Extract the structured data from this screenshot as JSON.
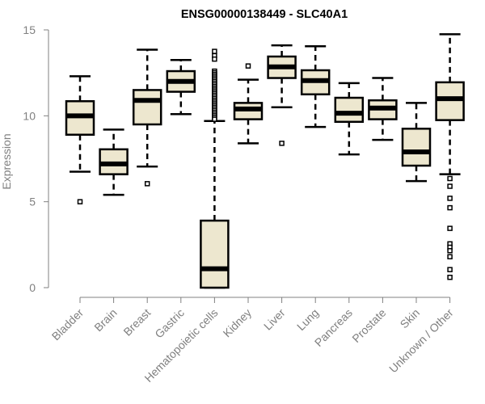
{
  "chart_data": {
    "type": "boxplot",
    "title": "ENSG00000138449 - SLC40A1",
    "xlabel": "",
    "ylabel": "Expression",
    "ylim": [
      0,
      15
    ],
    "yticks": [
      0,
      5,
      10,
      15
    ],
    "grid": false,
    "legend": "none",
    "colors": {
      "box_fill": "#ede7cf",
      "box_stroke": "#000000",
      "axis": "#808080",
      "tick_text": "#808080"
    },
    "categories": [
      "Bladder",
      "Brain",
      "Breast",
      "Gastric",
      "Hematopoietic cells",
      "Kidney",
      "Liver",
      "Lung",
      "Pancreas",
      "Prostate",
      "Skin",
      "Unknown / Other"
    ],
    "boxes": [
      {
        "name": "Bladder",
        "whisker_low": 6.75,
        "q1": 8.9,
        "median": 10.0,
        "q3": 10.85,
        "whisker_high": 12.3,
        "outliers": [
          5.0
        ]
      },
      {
        "name": "Brain",
        "whisker_low": 5.4,
        "q1": 6.6,
        "median": 7.2,
        "q3": 8.05,
        "whisker_high": 9.2,
        "outliers": []
      },
      {
        "name": "Breast",
        "whisker_low": 7.05,
        "q1": 9.5,
        "median": 10.9,
        "q3": 11.5,
        "whisker_high": 13.85,
        "outliers": [
          6.05
        ]
      },
      {
        "name": "Gastric",
        "whisker_low": 10.1,
        "q1": 11.4,
        "median": 12.0,
        "q3": 12.6,
        "whisker_high": 13.25,
        "outliers": []
      },
      {
        "name": "Hematopoietic cells",
        "whisker_low": 0.0,
        "q1": 0.0,
        "median": 1.1,
        "q3": 3.9,
        "whisker_high": 9.7,
        "outliers": [
          13.75,
          13.5,
          13.3,
          12.6,
          12.5,
          12.4,
          12.3,
          12.2,
          12.1,
          12.0,
          11.9,
          11.8,
          11.7,
          11.6,
          11.5,
          11.4,
          11.3,
          11.2,
          11.1,
          11.0,
          10.9,
          10.8,
          10.7,
          10.6,
          10.5,
          10.4,
          10.3,
          10.2,
          10.1,
          10.0,
          9.9,
          9.8
        ]
      },
      {
        "name": "Kidney",
        "whisker_low": 8.4,
        "q1": 9.8,
        "median": 10.4,
        "q3": 10.75,
        "whisker_high": 12.1,
        "outliers": [
          12.9
        ]
      },
      {
        "name": "Liver",
        "whisker_low": 10.5,
        "q1": 12.2,
        "median": 12.85,
        "q3": 13.45,
        "whisker_high": 14.1,
        "outliers": [
          8.4
        ]
      },
      {
        "name": "Lung",
        "whisker_low": 9.35,
        "q1": 11.25,
        "median": 12.05,
        "q3": 12.65,
        "whisker_high": 14.05,
        "outliers": []
      },
      {
        "name": "Pancreas",
        "whisker_low": 7.75,
        "q1": 9.65,
        "median": 10.15,
        "q3": 11.05,
        "whisker_high": 11.9,
        "outliers": []
      },
      {
        "name": "Prostate",
        "whisker_low": 8.6,
        "q1": 9.8,
        "median": 10.45,
        "q3": 10.9,
        "whisker_high": 12.2,
        "outliers": []
      },
      {
        "name": "Skin",
        "whisker_low": 6.2,
        "q1": 7.1,
        "median": 7.9,
        "q3": 9.25,
        "whisker_high": 10.75,
        "outliers": []
      },
      {
        "name": "Unknown / Other",
        "whisker_low": 6.6,
        "q1": 9.75,
        "median": 11.0,
        "q3": 11.95,
        "whisker_high": 14.75,
        "outliers": [
          6.35,
          5.9,
          5.2,
          4.65,
          3.45,
          2.55,
          2.35,
          2.15,
          1.8,
          1.05,
          0.6
        ]
      }
    ]
  }
}
